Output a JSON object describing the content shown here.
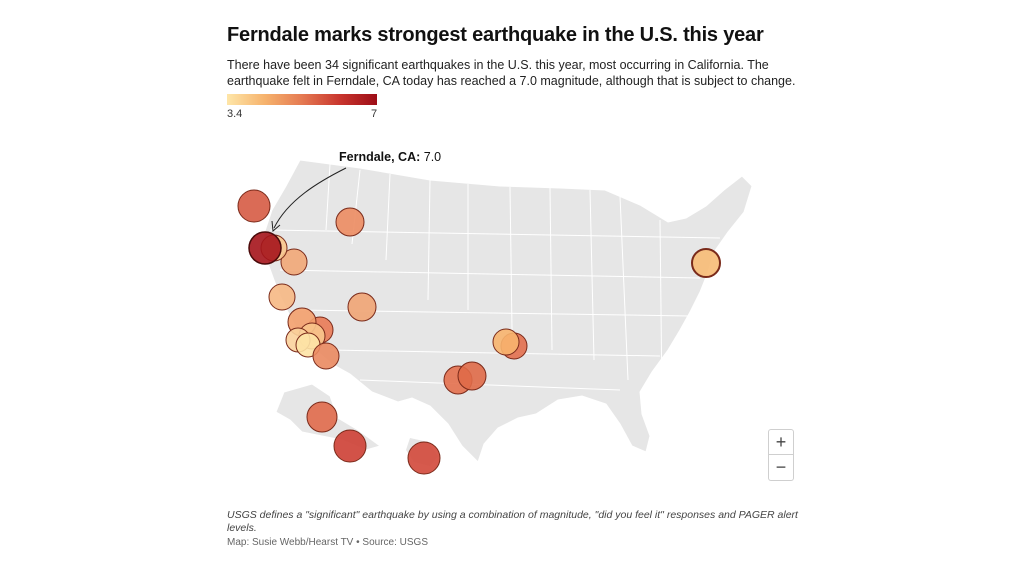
{
  "header": {
    "title": "Ferndale marks strongest earthquake in the U.S. this year",
    "subtitle": "There have been 34 significant earthquakes in the U.S. this year, most occurring in California. The earthquake felt in Ferndale, CA today has reached a 7.0 magnitude, although that is subject to change."
  },
  "legend": {
    "min_label": "3.4",
    "max_label": "7",
    "colors": [
      "#fee6a8",
      "#f6b36d",
      "#e57a52",
      "#c9362e",
      "#9d0d17"
    ]
  },
  "callout": {
    "place": "Ferndale, CA:",
    "value": "7.0"
  },
  "map_controls": {
    "zoom_in_label": "+",
    "zoom_out_label": "−"
  },
  "footer": {
    "note": "USGS defines a \"significant\" earthquake by using a combination of magnitude, \"did you feel it\" responses and PAGER alert levels.",
    "credit": "Map: Susie Webb/Hearst TV • Source: USGS"
  },
  "colors": {
    "land": "#e6e6e6",
    "state_border": "#ffffff",
    "marker_stroke": "#7a2a1a"
  }
}
